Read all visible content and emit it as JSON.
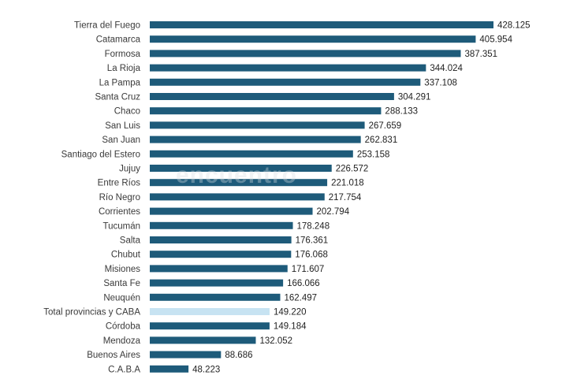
{
  "chart_data": {
    "type": "bar",
    "orientation": "horizontal",
    "categories": [
      "Tierra del Fuego",
      "Catamarca",
      "Formosa",
      "La Rioja",
      "La Pampa",
      "Santa Cruz",
      "Chaco",
      "San Luis",
      "San Juan",
      "Santiago del Estero",
      "Jujuy",
      "Entre Ríos",
      "Río Negro",
      "Corrientes",
      "Tucumán",
      "Salta",
      "Chubut",
      "Misiones",
      "Santa Fe",
      "Neuquén",
      "Total provincias y CABA",
      "Córdoba",
      "Mendoza",
      "Buenos Aires",
      "C.A.B.A"
    ],
    "values": [
      428125,
      405954,
      387351,
      344024,
      337108,
      304291,
      288133,
      267659,
      262831,
      253158,
      226572,
      221018,
      217754,
      202794,
      178248,
      176361,
      176068,
      171607,
      166066,
      162497,
      149220,
      149184,
      132052,
      88686,
      48223
    ],
    "value_labels": [
      "428.125",
      "405.954",
      "387.351",
      "344.024",
      "337.108",
      "304.291",
      "288.133",
      "267.659",
      "262.831",
      "253.158",
      "226.572",
      "221.018",
      "217.754",
      "202.794",
      "178.248",
      "176.361",
      "176.068",
      "171.607",
      "166.066",
      "162.497",
      "149.220",
      "149.184",
      "132.052",
      "88.686",
      "48.223"
    ],
    "highlight_category": "Total provincias y CABA",
    "xlim": [
      0,
      428125
    ],
    "grid": false,
    "legend": "none"
  },
  "colors": {
    "bar": "#1e5b7a",
    "highlight_bar": "#c7e3f2",
    "watermark": "#d9dee3"
  },
  "watermark": "encuentro"
}
